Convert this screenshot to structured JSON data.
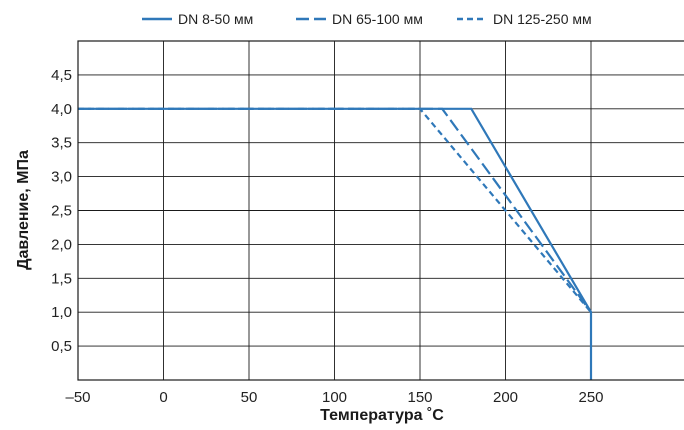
{
  "chart_data": {
    "type": "line",
    "title": "",
    "xlabel": "Температура ˚С",
    "ylabel": "Давление, МПа",
    "xlim": [
      -50,
      300
    ],
    "ylim": [
      0,
      5
    ],
    "xticks": [
      -50,
      0,
      50,
      100,
      150,
      200,
      250
    ],
    "xtick_labels": [
      "–50",
      "0",
      "50",
      "100",
      "150",
      "200",
      "250"
    ],
    "yticks": [
      0.5,
      1.0,
      1.5,
      2.0,
      2.5,
      3.0,
      3.5,
      4.0,
      4.5
    ],
    "ytick_labels": [
      "0,5",
      "1,0",
      "1,5",
      "2,0",
      "2,5",
      "3,0",
      "3,5",
      "4,0",
      "4,5"
    ],
    "grid": true,
    "legend_position": "top",
    "series": [
      {
        "name": "DN 8-50 мм",
        "style": "solid",
        "color": "#2f78b9",
        "x": [
          -50,
          180,
          250,
          250
        ],
        "y": [
          4.0,
          4.0,
          1.0,
          0.0
        ]
      },
      {
        "name": "DN 65-100 мм",
        "style": "dashed",
        "color": "#2f78b9",
        "x": [
          -50,
          163,
          250
        ],
        "y": [
          4.0,
          4.0,
          1.0
        ]
      },
      {
        "name": "DN 125-250 мм",
        "style": "dotted",
        "color": "#2f78b9",
        "x": [
          -50,
          150,
          250
        ],
        "y": [
          4.0,
          4.0,
          1.0
        ]
      }
    ]
  }
}
